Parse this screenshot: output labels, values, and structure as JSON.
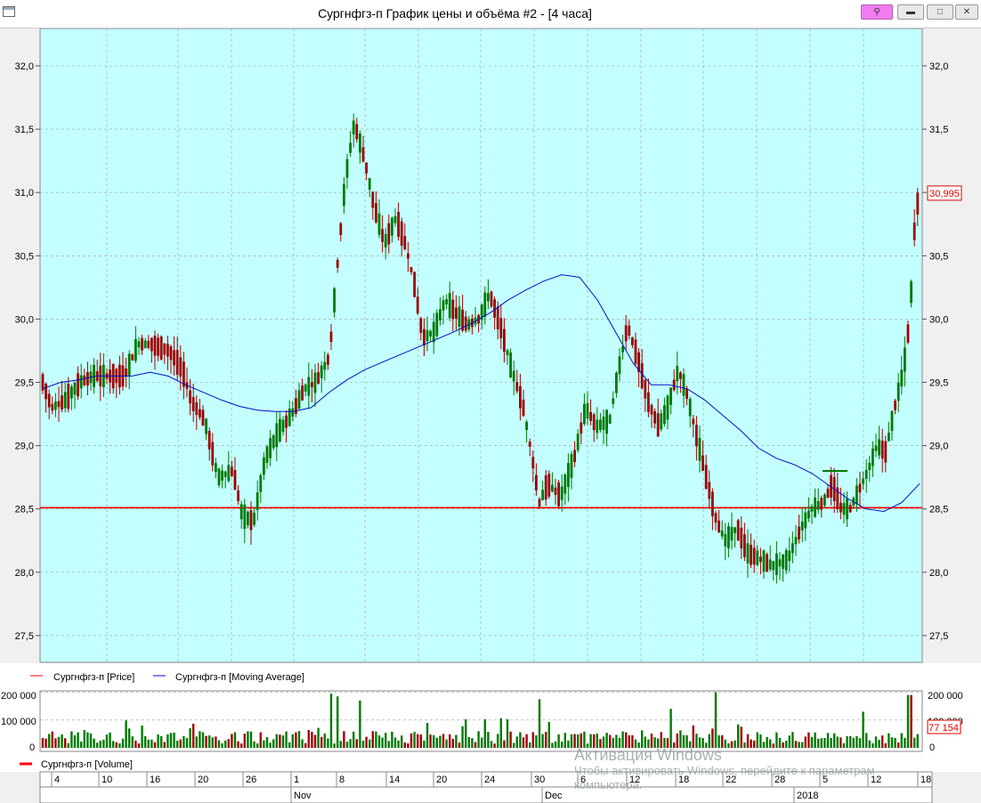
{
  "window": {
    "title": "Сургнфгз-п График цены и объёма #2 - [4 часа]",
    "buttons": [
      "pin",
      "minimize",
      "maximize",
      "close"
    ]
  },
  "colors": {
    "background": "#c4ffff",
    "up_candle": "#007a00",
    "down_candle": "#a00000",
    "moving_average": "#0010c8",
    "price_line": "#ff0000",
    "grid": "#9aa0a0"
  },
  "chart_data": [
    {
      "type": "candlestick",
      "y_ticks": [
        "32,0",
        "31,5",
        "31,0",
        "30,5",
        "30,0",
        "29,5",
        "29,0",
        "28,5",
        "28,0",
        "27,5"
      ],
      "y_tick_values": [
        32.0,
        31.5,
        31.0,
        30.5,
        30.0,
        29.5,
        29.0,
        28.5,
        28.0,
        27.5
      ],
      "ylim": [
        27.3,
        32.3
      ],
      "last_price_label": "30,995",
      "last_price": 30.995,
      "horizontal_line_value": 28.51,
      "green_tick_value": 28.8,
      "legend": [
        {
          "name": "Сургнфгз-п [Price]",
          "color": "#ff0000"
        },
        {
          "name": "Сургнфгз-п [Moving Average]",
          "color": "#0010c8"
        }
      ],
      "moving_average": [
        29.45,
        29.5,
        29.52,
        29.55,
        29.55,
        29.55,
        29.58,
        29.55,
        29.48,
        29.42,
        29.36,
        29.31,
        29.28,
        29.27,
        29.27,
        29.3,
        29.42,
        29.52,
        29.6,
        29.66,
        29.72,
        29.78,
        29.84,
        29.9,
        29.97,
        30.05,
        30.15,
        30.23,
        30.3,
        30.35,
        30.33,
        30.15,
        29.9,
        29.65,
        29.48,
        29.48,
        29.45,
        29.36,
        29.24,
        29.12,
        28.98,
        28.9,
        28.85,
        28.78,
        28.68,
        28.58,
        28.5,
        28.48,
        28.55,
        28.7
      ]
    },
    {
      "type": "bar",
      "series": [
        {
          "name": "Сургнфгз-п [Volume]"
        }
      ],
      "y_ticks": [
        "200 000",
        "100 000",
        "0"
      ],
      "y_tick_values": [
        200000,
        100000,
        0
      ],
      "right_ticks": [
        "200 000",
        "100 000",
        "0"
      ],
      "ylim": [
        0,
        205000
      ],
      "last_volume_label": "77 154",
      "last_volume": 77154,
      "x_day_labels": [
        "4",
        "10",
        "16",
        "20",
        "26",
        "1",
        "8",
        "14",
        "20",
        "24",
        "30",
        "6",
        "12",
        "18",
        "22",
        "28",
        "5",
        "12",
        "18"
      ],
      "x_month_labels": [
        "Nov",
        "Dec",
        "2018"
      ]
    }
  ],
  "watermark": {
    "line1": "Активация Windows",
    "line2": "Чтобы активировать Windows, перейдите к параметрам",
    "line3": "компьютера."
  }
}
